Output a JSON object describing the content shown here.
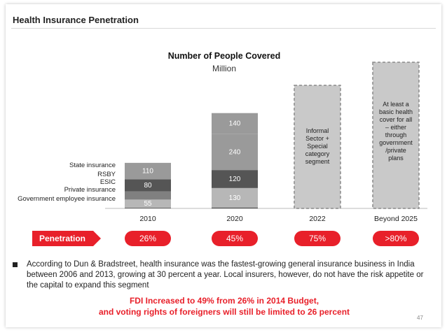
{
  "page": {
    "title": "Health Insurance Penetration",
    "page_number": "47"
  },
  "chart_data": {
    "type": "bar",
    "stacked": true,
    "title": "Number of People Covered",
    "subtitle": "Million",
    "categories": [
      "2010",
      "2020",
      "2022",
      "Beyond 2025"
    ],
    "series": [
      {
        "name": "Government employee insurance",
        "values": [
          4,
          6,
          null,
          null
        ],
        "color": "#4a4a4a"
      },
      {
        "name": "Private insurance",
        "values": [
          55,
          130,
          null,
          null
        ],
        "color": "#b7b7b7"
      },
      {
        "name": "ESIC",
        "values": [
          55,
          null,
          null,
          null
        ],
        "color": "#808080"
      },
      {
        "name": "RSBY",
        "values": [
          80,
          120,
          null,
          null
        ],
        "color": "#555555"
      },
      {
        "name": "State insurance",
        "values": [
          110,
          240,
          null,
          null
        ],
        "color": "#9a9a9a"
      }
    ],
    "data_labels": {
      "2010": [
        "55",
        "80",
        "110"
      ],
      "2020": [
        "130",
        "120",
        "240",
        "140"
      ]
    },
    "extra_segments": {
      "2020_top": {
        "value": 140,
        "color": "#9a9a9a"
      }
    },
    "projected_bars": [
      {
        "category": "2022",
        "label": [
          "Informal",
          "Sector +",
          "Special",
          "category",
          "segment"
        ]
      },
      {
        "category": "Beyond 2025",
        "label": [
          "At least a",
          "basic health",
          "cover for all",
          "– either",
          "through",
          "government",
          "/private",
          "plans"
        ]
      }
    ],
    "legend_labels": [
      "State insurance",
      "RSBY",
      "ESIC",
      "Private insurance",
      "Government employee insurance"
    ]
  },
  "penetration": {
    "label": "Penetration",
    "values": [
      "26%",
      "45%",
      "75%",
      ">80%"
    ]
  },
  "bullet": "According to Dun & Bradstreet, health insurance was the fastest-growing general insurance business in India between 2006 and 2013, growing at 30 percent a year. Local insurers, however, do not have the risk appetite or the capital to expand this segment",
  "fdi": {
    "line1": "FDI Increased to 49% from 26% in 2014 Budget,",
    "line2": "and voting rights of foreigners will still be limited to 26 percent"
  },
  "colors": {
    "accent": "#e8202a"
  }
}
